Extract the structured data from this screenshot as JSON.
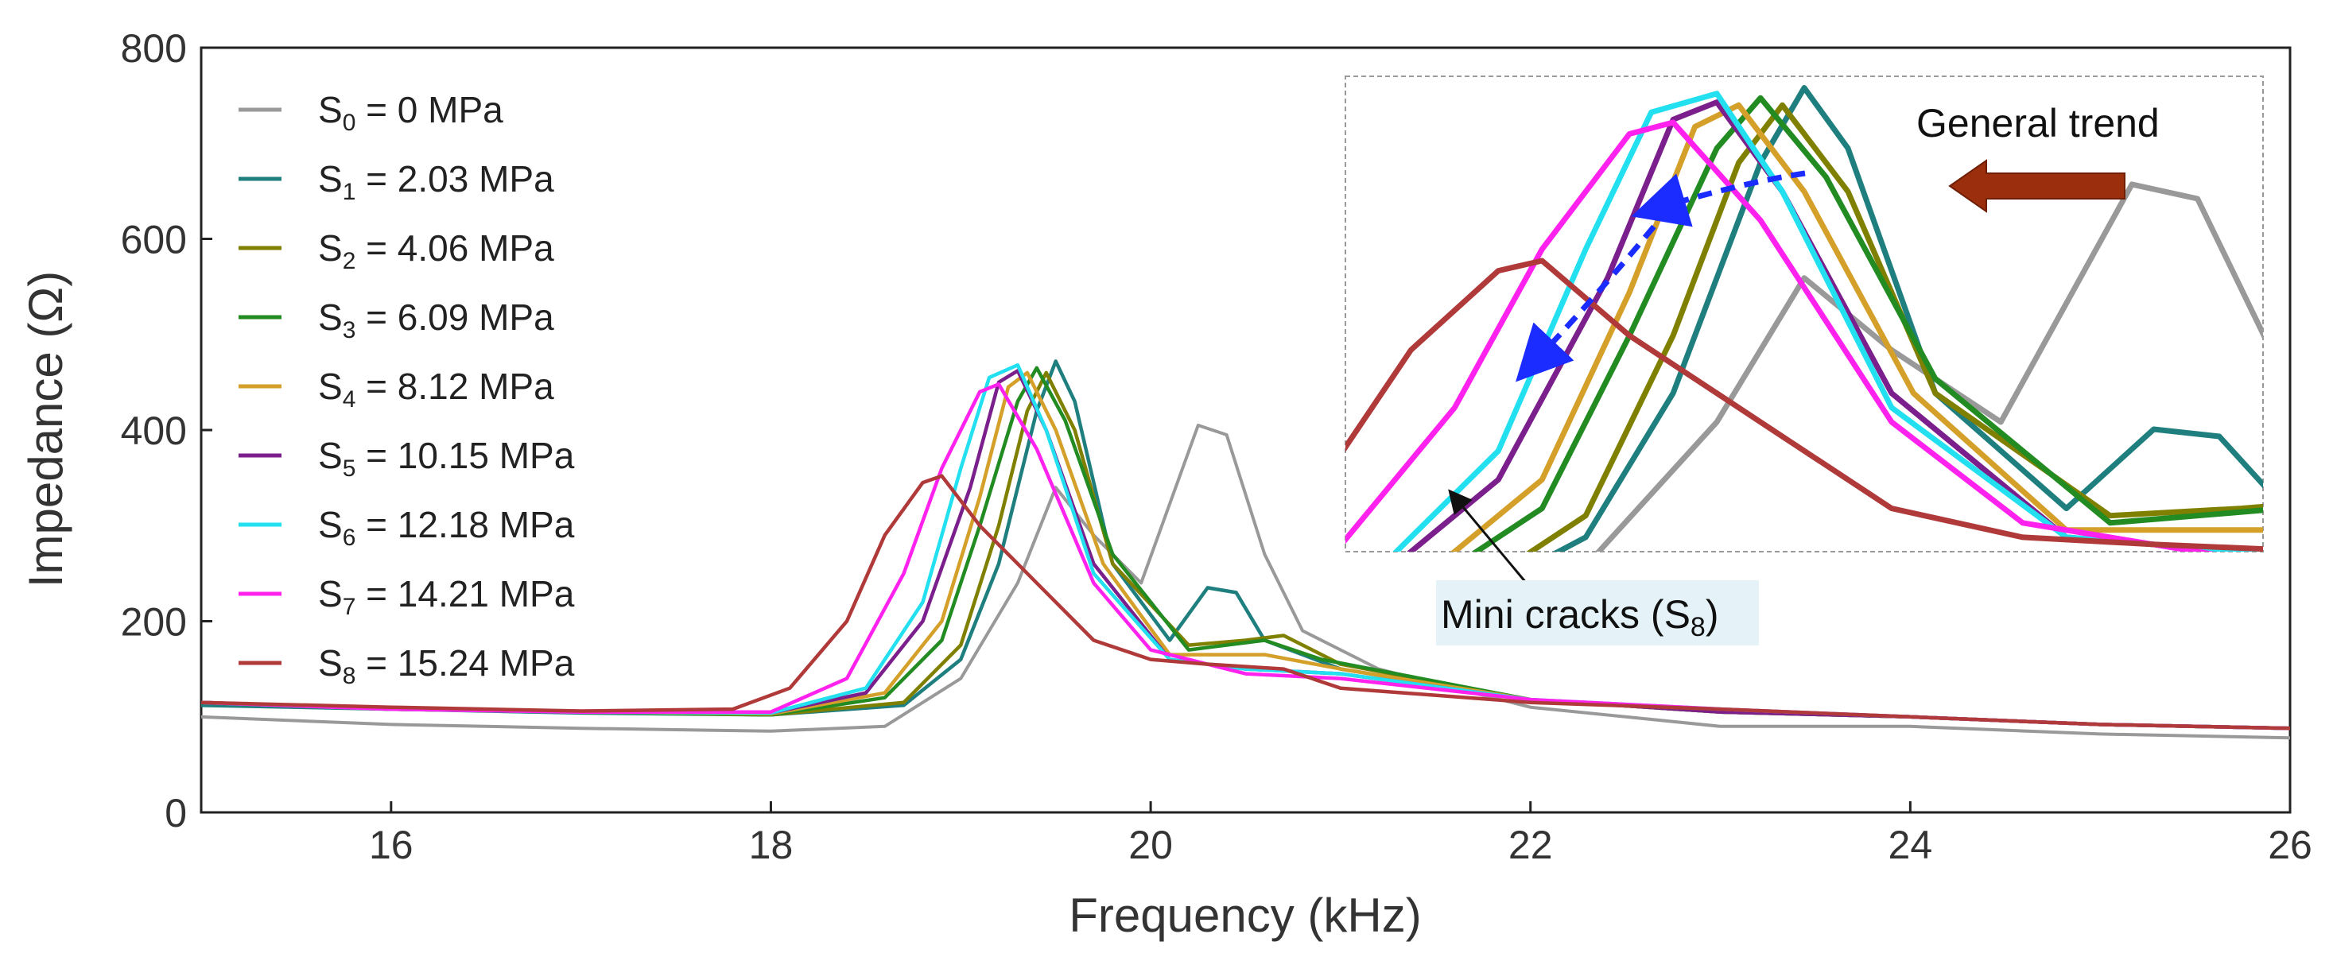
{
  "chart_data": {
    "type": "line",
    "title": "",
    "xlabel": "Frequency (kHz)",
    "ylabel": "Impedance (Ω)",
    "xlim": [
      15,
      26
    ],
    "ylim": [
      0,
      800
    ],
    "xticks": [
      "16",
      "18",
      "20",
      "22",
      "24",
      "26"
    ],
    "yticks": [
      "0",
      "200",
      "400",
      "600",
      "800"
    ],
    "grid": false,
    "legend_position": "top-left",
    "series": [
      {
        "name": "S0 = 0 MPa",
        "sym": "S",
        "sub": "0",
        "rest": " = 0 MPa",
        "color": "#999999",
        "x": [
          15,
          16,
          17,
          18,
          18.6,
          19.0,
          19.3,
          19.5,
          19.7,
          19.95,
          20.15,
          20.25,
          20.4,
          20.6,
          20.8,
          21.2,
          22,
          23,
          24,
          25,
          26
        ],
        "y": [
          100,
          92,
          88,
          85,
          90,
          140,
          240,
          340,
          290,
          240,
          350,
          405,
          395,
          270,
          190,
          150,
          110,
          90,
          90,
          82,
          78
        ]
      },
      {
        "name": "S1 = 2.03 MPa",
        "sym": "S",
        "sub": "1",
        "rest": " = 2.03 MPa",
        "color": "#1f7f7f",
        "x": [
          15,
          16,
          17,
          18,
          18.7,
          19.0,
          19.2,
          19.4,
          19.5,
          19.6,
          19.8,
          20.1,
          20.3,
          20.45,
          20.6,
          21,
          22,
          23,
          24,
          25,
          26
        ],
        "y": [
          112,
          108,
          104,
          102,
          112,
          160,
          260,
          420,
          472,
          430,
          260,
          180,
          235,
          230,
          180,
          150,
          118,
          105,
          100,
          92,
          88
        ]
      },
      {
        "name": "S2 = 4.06 MPa",
        "sym": "S",
        "sub": "2",
        "rest": " = 4.06 MPa",
        "color": "#808000",
        "x": [
          15,
          16,
          17,
          18,
          18.7,
          19.0,
          19.2,
          19.35,
          19.45,
          19.6,
          19.8,
          20.2,
          20.5,
          20.7,
          21,
          22,
          23,
          24,
          25,
          26
        ],
        "y": [
          115,
          108,
          105,
          102,
          115,
          175,
          300,
          420,
          460,
          400,
          260,
          175,
          180,
          185,
          155,
          118,
          105,
          100,
          92,
          88
        ]
      },
      {
        "name": "S3 = 6.09 MPa",
        "sym": "S",
        "sub": "3",
        "rest": " = 6.09 MPa",
        "color": "#228b22",
        "x": [
          15,
          16,
          17,
          18,
          18.6,
          18.9,
          19.1,
          19.3,
          19.4,
          19.55,
          19.8,
          20.2,
          20.6,
          20.9,
          22,
          23,
          24,
          25,
          26
        ],
        "y": [
          115,
          108,
          105,
          102,
          120,
          180,
          300,
          430,
          465,
          410,
          270,
          170,
          180,
          160,
          118,
          105,
          100,
          92,
          88
        ]
      },
      {
        "name": "S4 = 8.12 MPa",
        "sym": "S",
        "sub": "4",
        "rest": " = 8.12 MPa",
        "color": "#d4a02a",
        "x": [
          15,
          16,
          17,
          18,
          18.6,
          18.9,
          19.1,
          19.25,
          19.35,
          19.5,
          19.75,
          20.1,
          20.6,
          21,
          22,
          23,
          24,
          25,
          26
        ],
        "y": [
          115,
          108,
          105,
          103,
          125,
          200,
          330,
          445,
          460,
          400,
          260,
          165,
          165,
          150,
          118,
          105,
          100,
          92,
          88
        ]
      },
      {
        "name": "S5 = 10.15 MPa",
        "sym": "S",
        "sub": "5",
        "rest": " = 10.15 MPa",
        "color": "#7b1f8c",
        "x": [
          15,
          16,
          17,
          18,
          18.5,
          18.8,
          19.05,
          19.2,
          19.3,
          19.45,
          19.7,
          20.1,
          20.5,
          21,
          22,
          23,
          24,
          25,
          26
        ],
        "y": [
          115,
          108,
          105,
          104,
          125,
          200,
          340,
          450,
          462,
          400,
          260,
          160,
          150,
          145,
          118,
          105,
          100,
          92,
          88
        ]
      },
      {
        "name": "S6 = 12.18 MPa",
        "sym": "S",
        "sub": "6",
        "rest": " = 12.18 MPa",
        "color": "#22e0f0",
        "x": [
          15,
          16,
          17,
          18,
          18.5,
          18.8,
          19.0,
          19.15,
          19.3,
          19.45,
          19.7,
          20.1,
          20.5,
          21,
          22,
          23,
          24,
          25,
          26
        ],
        "y": [
          115,
          108,
          105,
          104,
          130,
          220,
          360,
          455,
          468,
          400,
          250,
          160,
          150,
          145,
          118,
          108,
          100,
          92,
          88
        ]
      },
      {
        "name": "S7 = 14.21 MPa",
        "sym": "S",
        "sub": "7",
        "rest": " = 14.21 MPa",
        "color": "#ff22ee",
        "x": [
          15,
          16,
          17,
          18,
          18.4,
          18.7,
          18.9,
          19.1,
          19.2,
          19.4,
          19.7,
          20.0,
          20.5,
          21,
          22,
          23,
          24,
          25,
          26
        ],
        "y": [
          115,
          108,
          105,
          105,
          140,
          250,
          360,
          440,
          448,
          380,
          240,
          170,
          145,
          140,
          118,
          108,
          100,
          92,
          88
        ]
      },
      {
        "name": "S8 = 15.24 MPa",
        "sym": "S",
        "sub": "8",
        "rest": " = 15.24 MPa",
        "color": "#b03a3a",
        "x": [
          15,
          16,
          17,
          17.8,
          18.1,
          18.4,
          18.6,
          18.8,
          18.9,
          19.1,
          19.4,
          19.7,
          20.0,
          20.3,
          20.7,
          21,
          22,
          23,
          24,
          25,
          26
        ],
        "y": [
          115,
          110,
          106,
          108,
          130,
          200,
          290,
          345,
          352,
          300,
          240,
          180,
          160,
          155,
          150,
          130,
          115,
          108,
          100,
          92,
          88
        ]
      }
    ],
    "annotations": {
      "general_trend": "General trend",
      "mini_cracks_pre": "Mini cracks (S",
      "mini_cracks_sub": "8",
      "mini_cracks_post": ")"
    },
    "inset": {
      "description": "zoomed view of peaks",
      "xlim": [
        18.45,
        20.55
      ],
      "ylim": [
        150,
        480
      ]
    }
  }
}
